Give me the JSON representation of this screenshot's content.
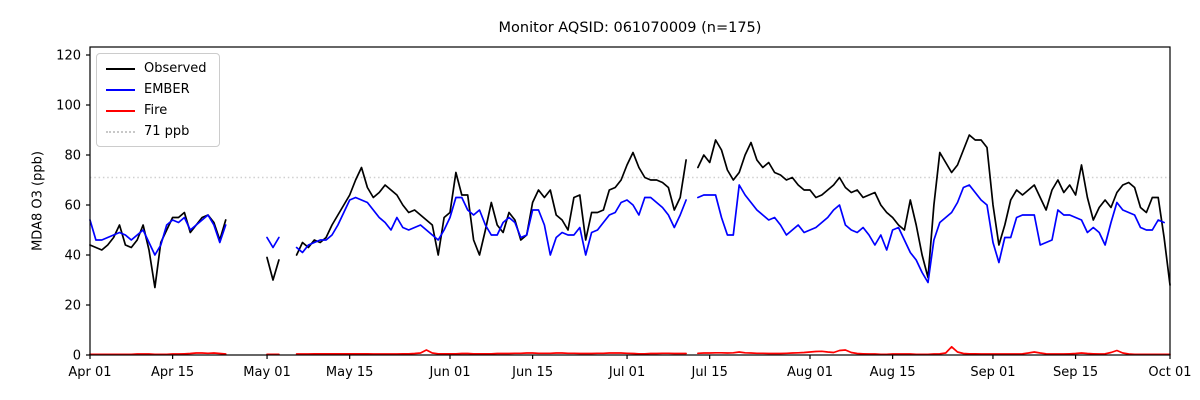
{
  "title": "Monitor AQSID: 061070009 (n=175)",
  "chart_data": {
    "type": "line",
    "title": "Monitor AQSID: 061070009 (n=175)",
    "xlabel": "",
    "ylabel": "MDA8 O3 (ppb)",
    "ylim": [
      0,
      123
    ],
    "yticks": [
      0,
      20,
      40,
      60,
      80,
      100,
      120
    ],
    "x_start_day": "Apr 01",
    "x_total_days": 183,
    "xticks": [
      {
        "label": "Apr 01",
        "day": 0
      },
      {
        "label": "Apr 15",
        "day": 14
      },
      {
        "label": "May 01",
        "day": 30
      },
      {
        "label": "May 15",
        "day": 44
      },
      {
        "label": "Jun 01",
        "day": 61
      },
      {
        "label": "Jun 15",
        "day": 75
      },
      {
        "label": "Jul 01",
        "day": 91
      },
      {
        "label": "Jul 15",
        "day": 105
      },
      {
        "label": "Aug 01",
        "day": 122
      },
      {
        "label": "Aug 15",
        "day": 136
      },
      {
        "label": "Sep 01",
        "day": 153
      },
      {
        "label": "Sep 15",
        "day": 167
      },
      {
        "label": "Oct 01",
        "day": 183
      }
    ],
    "threshold": {
      "value": 71,
      "label": "71 ppb",
      "color": "#d0d0d0",
      "style": "dotted"
    },
    "grid": false,
    "legend_position": "upper-left",
    "legend": [
      {
        "label": "Observed",
        "color": "#000000",
        "style": "solid"
      },
      {
        "label": "EMBER",
        "color": "#0000ff",
        "style": "solid"
      },
      {
        "label": "Fire",
        "color": "#ff0000",
        "style": "solid"
      },
      {
        "label": "71 ppb",
        "color": "#c8c8c8",
        "style": "dotted"
      }
    ],
    "series": [
      {
        "name": "Observed",
        "color": "#000000",
        "values": [
          44,
          43,
          42,
          44,
          47,
          52,
          44,
          43,
          46,
          52,
          42,
          27,
          45,
          50,
          55,
          55,
          57,
          49,
          52,
          55,
          56,
          53,
          46,
          54,
          null,
          null,
          null,
          null,
          null,
          null,
          39,
          30,
          38,
          null,
          null,
          40,
          45,
          43,
          46,
          45,
          47,
          52,
          56,
          60,
          64,
          70,
          75,
          67,
          63,
          65,
          68,
          66,
          64,
          60,
          57,
          58,
          56,
          54,
          52,
          40,
          55,
          57,
          73,
          64,
          64,
          46,
          40,
          50,
          61,
          52,
          49,
          57,
          54,
          46,
          48,
          61,
          66,
          63,
          66,
          56,
          54,
          50,
          63,
          64,
          46,
          57,
          57,
          58,
          66,
          67,
          70,
          76,
          81,
          75,
          71,
          70,
          70,
          69,
          67,
          58,
          63,
          78,
          null,
          75,
          80,
          77,
          86,
          82,
          74,
          70,
          73,
          80,
          85,
          78,
          75,
          77,
          73,
          72,
          70,
          71,
          68,
          66,
          66,
          63,
          64,
          66,
          68,
          71,
          67,
          65,
          66,
          63,
          64,
          65,
          60,
          57,
          55,
          52,
          50,
          62,
          52,
          40,
          31,
          60,
          81,
          77,
          73,
          76,
          82,
          88,
          86,
          86,
          83,
          60,
          44,
          52,
          62,
          66,
          64,
          66,
          68,
          63,
          58,
          66,
          70,
          65,
          68,
          64,
          76,
          63,
          54,
          59,
          62,
          59,
          65,
          68,
          69,
          67,
          59,
          57,
          63,
          63,
          47,
          28
        ]
      },
      {
        "name": "EMBER",
        "color": "#0000ff",
        "values": [
          54,
          46,
          46,
          47,
          48,
          49,
          48,
          46,
          48,
          50,
          45,
          40,
          44,
          52,
          54,
          53,
          55,
          50,
          52,
          54,
          56,
          52,
          45,
          52,
          null,
          null,
          null,
          null,
          null,
          null,
          47,
          43,
          47,
          null,
          null,
          43,
          41,
          44,
          45,
          46,
          46,
          48,
          52,
          57,
          62,
          63,
          62,
          61,
          58,
          55,
          53,
          50,
          55,
          51,
          50,
          51,
          52,
          50,
          48,
          46,
          50,
          55,
          63,
          63,
          58,
          56,
          58,
          52,
          48,
          48,
          53,
          55,
          53,
          47,
          48,
          58,
          58,
          52,
          40,
          47,
          49,
          48,
          48,
          51,
          40,
          49,
          50,
          53,
          56,
          57,
          61,
          62,
          60,
          56,
          63,
          63,
          61,
          59,
          56,
          51,
          56,
          62,
          null,
          63,
          64,
          64,
          64,
          55,
          48,
          48,
          68,
          64,
          61,
          58,
          56,
          54,
          55,
          52,
          48,
          50,
          52,
          49,
          50,
          51,
          53,
          55,
          58,
          60,
          52,
          50,
          49,
          51,
          48,
          44,
          48,
          42,
          50,
          51,
          46,
          41,
          38,
          33,
          29,
          46,
          53,
          55,
          57,
          61,
          67,
          68,
          65,
          62,
          60,
          45,
          37,
          47,
          47,
          55,
          56,
          56,
          56,
          44,
          45,
          46,
          58,
          56,
          56,
          55,
          54,
          49,
          51,
          49,
          44,
          53,
          61,
          58,
          57,
          56,
          51,
          50,
          50,
          54,
          53,
          null
        ]
      },
      {
        "name": "Fire",
        "color": "#ff0000",
        "values": [
          0.3,
          0.3,
          0.3,
          0.3,
          0.3,
          0.3,
          0.3,
          0.3,
          0.4,
          0.4,
          0.4,
          0.3,
          0.3,
          0.3,
          0.4,
          0.4,
          0.5,
          0.6,
          0.8,
          0.8,
          0.7,
          0.8,
          0.6,
          0.4,
          null,
          null,
          null,
          null,
          null,
          null,
          0.3,
          0.3,
          0.3,
          null,
          null,
          0.4,
          0.4,
          0.4,
          0.5,
          0.5,
          0.5,
          0.5,
          0.5,
          0.5,
          0.5,
          0.5,
          0.5,
          0.5,
          0.4,
          0.4,
          0.4,
          0.4,
          0.4,
          0.5,
          0.5,
          0.6,
          0.8,
          2.0,
          0.8,
          0.5,
          0.5,
          0.5,
          0.5,
          0.6,
          0.6,
          0.5,
          0.5,
          0.5,
          0.5,
          0.6,
          0.6,
          0.6,
          0.7,
          0.7,
          0.8,
          0.8,
          0.7,
          0.7,
          0.7,
          0.8,
          0.8,
          0.7,
          0.7,
          0.6,
          0.6,
          0.6,
          0.7,
          0.7,
          0.8,
          0.8,
          0.8,
          0.7,
          0.6,
          0.5,
          0.5,
          0.6,
          0.6,
          0.7,
          0.7,
          0.6,
          0.6,
          0.6,
          null,
          0.7,
          0.8,
          0.8,
          0.9,
          0.9,
          0.8,
          0.9,
          1.2,
          0.9,
          0.8,
          0.7,
          0.7,
          0.6,
          0.6,
          0.6,
          0.7,
          0.8,
          0.9,
          1.0,
          1.2,
          1.4,
          1.5,
          1.2,
          1.0,
          1.8,
          2.0,
          1.0,
          0.6,
          0.5,
          0.4,
          0.4,
          0.3,
          0.3,
          0.4,
          0.4,
          0.4,
          0.4,
          0.3,
          0.3,
          0.3,
          0.4,
          0.5,
          0.8,
          3.3,
          1.2,
          0.6,
          0.5,
          0.5,
          0.4,
          0.4,
          0.4,
          0.4,
          0.4,
          0.4,
          0.4,
          0.5,
          0.8,
          1.2,
          0.8,
          0.5,
          0.4,
          0.4,
          0.4,
          0.5,
          0.6,
          0.8,
          0.6,
          0.5,
          0.4,
          0.5,
          1.0,
          1.8,
          0.8,
          0.4,
          0.3,
          0.3,
          0.3,
          0.3,
          0.3,
          0.3,
          0.3
        ]
      }
    ]
  }
}
